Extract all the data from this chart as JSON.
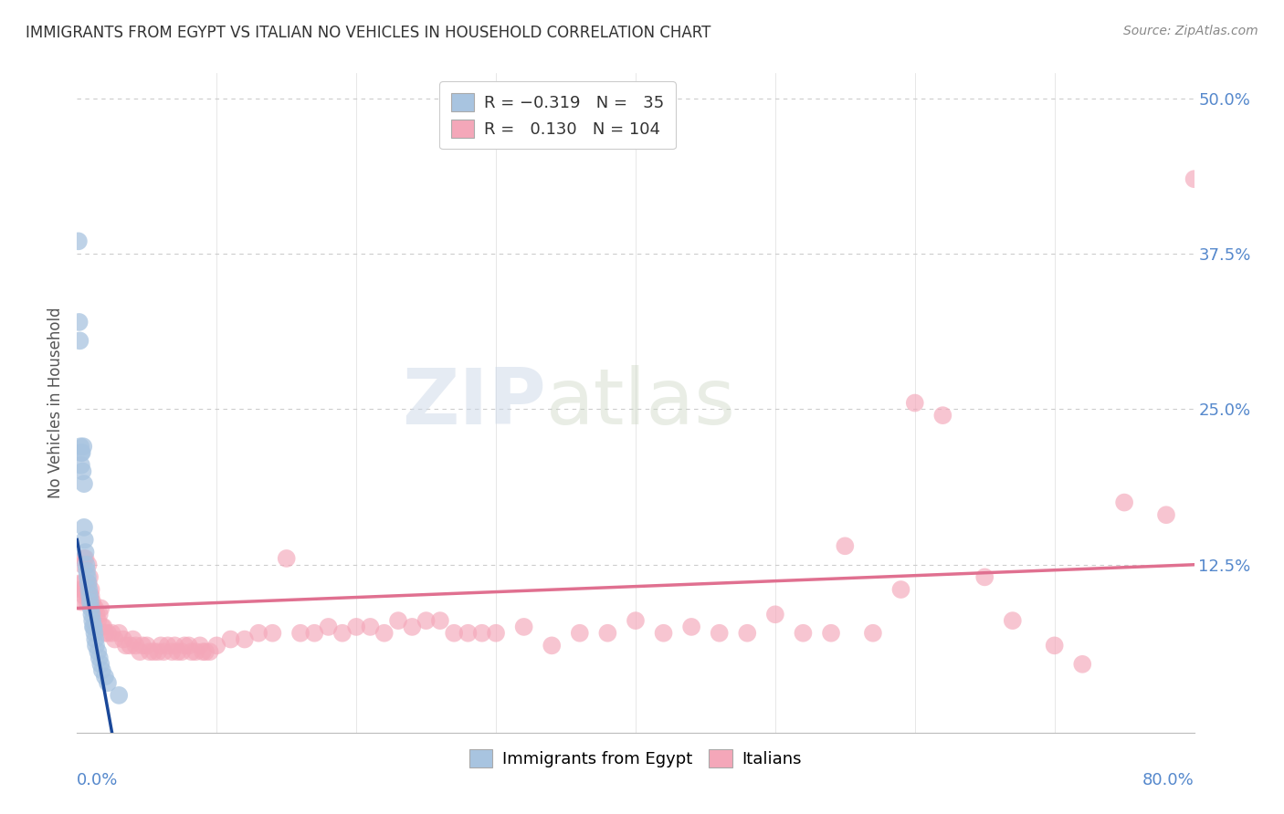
{
  "title": "IMMIGRANTS FROM EGYPT VS ITALIAN NO VEHICLES IN HOUSEHOLD CORRELATION CHART",
  "source": "Source: ZipAtlas.com",
  "ylabel": "No Vehicles in Household",
  "xrange": [
    0.0,
    80.0
  ],
  "yrange": [
    -1.0,
    52.0
  ],
  "yticks": [
    0.0,
    12.5,
    25.0,
    37.5,
    50.0
  ],
  "ytick_labels": [
    "",
    "12.5%",
    "25.0%",
    "37.5%",
    "50.0%"
  ],
  "xtick_minor": [
    10,
    20,
    30,
    40,
    50,
    60,
    70
  ],
  "color_egypt": "#a8c4e0",
  "color_italy": "#f4a7b9",
  "color_egypt_line": "#1a4899",
  "color_italy_line": "#e07090",
  "watermark_zip": "ZIP",
  "watermark_atlas": "atlas",
  "blue_series": [
    [
      0.1,
      38.5
    ],
    [
      0.2,
      30.5
    ],
    [
      0.3,
      20.5
    ],
    [
      0.3,
      21.5
    ],
    [
      0.4,
      20.0
    ],
    [
      0.45,
      22.0
    ],
    [
      0.5,
      19.0
    ],
    [
      0.15,
      32.0
    ],
    [
      0.25,
      22.0
    ],
    [
      0.35,
      21.5
    ],
    [
      0.5,
      15.5
    ],
    [
      0.55,
      14.5
    ],
    [
      0.6,
      13.5
    ],
    [
      0.65,
      12.5
    ],
    [
      0.7,
      12.0
    ],
    [
      0.75,
      11.5
    ],
    [
      0.8,
      11.0
    ],
    [
      0.85,
      10.5
    ],
    [
      0.9,
      10.0
    ],
    [
      0.95,
      9.5
    ],
    [
      1.0,
      9.0
    ],
    [
      1.05,
      8.5
    ],
    [
      1.1,
      8.0
    ],
    [
      1.15,
      7.5
    ],
    [
      1.2,
      7.5
    ],
    [
      1.25,
      7.0
    ],
    [
      1.3,
      6.5
    ],
    [
      1.35,
      6.0
    ],
    [
      1.5,
      5.5
    ],
    [
      1.6,
      5.0
    ],
    [
      1.7,
      4.5
    ],
    [
      1.8,
      4.0
    ],
    [
      2.0,
      3.5
    ],
    [
      2.2,
      3.0
    ],
    [
      3.0,
      2.0
    ]
  ],
  "pink_series": [
    [
      0.2,
      11.0
    ],
    [
      0.3,
      9.5
    ],
    [
      0.3,
      10.5
    ],
    [
      0.4,
      12.5
    ],
    [
      0.4,
      11.0
    ],
    [
      0.5,
      13.0
    ],
    [
      0.5,
      10.5
    ],
    [
      0.5,
      10.0
    ],
    [
      0.6,
      13.0
    ],
    [
      0.6,
      10.5
    ],
    [
      0.7,
      10.5
    ],
    [
      0.7,
      9.5
    ],
    [
      0.8,
      12.5
    ],
    [
      0.8,
      11.0
    ],
    [
      0.8,
      10.0
    ],
    [
      0.9,
      11.5
    ],
    [
      0.9,
      10.0
    ],
    [
      1.0,
      10.5
    ],
    [
      1.0,
      10.0
    ],
    [
      1.1,
      9.5
    ],
    [
      1.2,
      9.0
    ],
    [
      1.3,
      9.0
    ],
    [
      1.4,
      8.5
    ],
    [
      1.5,
      8.0
    ],
    [
      1.6,
      8.5
    ],
    [
      1.7,
      9.0
    ],
    [
      1.8,
      7.5
    ],
    [
      1.9,
      7.5
    ],
    [
      2.0,
      7.0
    ],
    [
      2.2,
      7.0
    ],
    [
      2.5,
      7.0
    ],
    [
      2.7,
      6.5
    ],
    [
      3.0,
      7.0
    ],
    [
      3.3,
      6.5
    ],
    [
      3.5,
      6.0
    ],
    [
      3.8,
      6.0
    ],
    [
      4.0,
      6.5
    ],
    [
      4.2,
      6.0
    ],
    [
      4.5,
      5.5
    ],
    [
      4.7,
      6.0
    ],
    [
      5.0,
      6.0
    ],
    [
      5.2,
      5.5
    ],
    [
      5.5,
      5.5
    ],
    [
      5.8,
      5.5
    ],
    [
      6.0,
      6.0
    ],
    [
      6.2,
      5.5
    ],
    [
      6.5,
      6.0
    ],
    [
      6.8,
      5.5
    ],
    [
      7.0,
      6.0
    ],
    [
      7.2,
      5.5
    ],
    [
      7.5,
      5.5
    ],
    [
      7.7,
      6.0
    ],
    [
      8.0,
      6.0
    ],
    [
      8.2,
      5.5
    ],
    [
      8.5,
      5.5
    ],
    [
      8.8,
      6.0
    ],
    [
      9.0,
      5.5
    ],
    [
      9.2,
      5.5
    ],
    [
      9.5,
      5.5
    ],
    [
      10.0,
      6.0
    ],
    [
      11.0,
      6.5
    ],
    [
      12.0,
      6.5
    ],
    [
      13.0,
      7.0
    ],
    [
      14.0,
      7.0
    ],
    [
      15.0,
      13.0
    ],
    [
      16.0,
      7.0
    ],
    [
      17.0,
      7.0
    ],
    [
      18.0,
      7.5
    ],
    [
      19.0,
      7.0
    ],
    [
      20.0,
      7.5
    ],
    [
      21.0,
      7.5
    ],
    [
      22.0,
      7.0
    ],
    [
      23.0,
      8.0
    ],
    [
      24.0,
      7.5
    ],
    [
      25.0,
      8.0
    ],
    [
      26.0,
      8.0
    ],
    [
      27.0,
      7.0
    ],
    [
      28.0,
      7.0
    ],
    [
      29.0,
      7.0
    ],
    [
      30.0,
      7.0
    ],
    [
      32.0,
      7.5
    ],
    [
      34.0,
      6.0
    ],
    [
      36.0,
      7.0
    ],
    [
      38.0,
      7.0
    ],
    [
      40.0,
      8.0
    ],
    [
      42.0,
      7.0
    ],
    [
      44.0,
      7.5
    ],
    [
      46.0,
      7.0
    ],
    [
      48.0,
      7.0
    ],
    [
      50.0,
      8.5
    ],
    [
      52.0,
      7.0
    ],
    [
      54.0,
      7.0
    ],
    [
      55.0,
      14.0
    ],
    [
      57.0,
      7.0
    ],
    [
      59.0,
      10.5
    ],
    [
      60.0,
      25.5
    ],
    [
      62.0,
      24.5
    ],
    [
      65.0,
      11.5
    ],
    [
      67.0,
      8.0
    ],
    [
      70.0,
      6.0
    ],
    [
      72.0,
      4.5
    ],
    [
      75.0,
      17.5
    ],
    [
      78.0,
      16.5
    ],
    [
      80.0,
      43.5
    ]
  ],
  "egypt_line": {
    "x0": 0.0,
    "y0": 14.5,
    "x1": 2.5,
    "y1": -1.0
  },
  "italy_line": {
    "x0": 0.0,
    "y0": 9.0,
    "x1": 80.0,
    "y1": 12.5
  },
  "background_color": "#ffffff",
  "grid_color": "#cccccc",
  "title_color": "#333333",
  "axis_label_color": "#5588cc"
}
